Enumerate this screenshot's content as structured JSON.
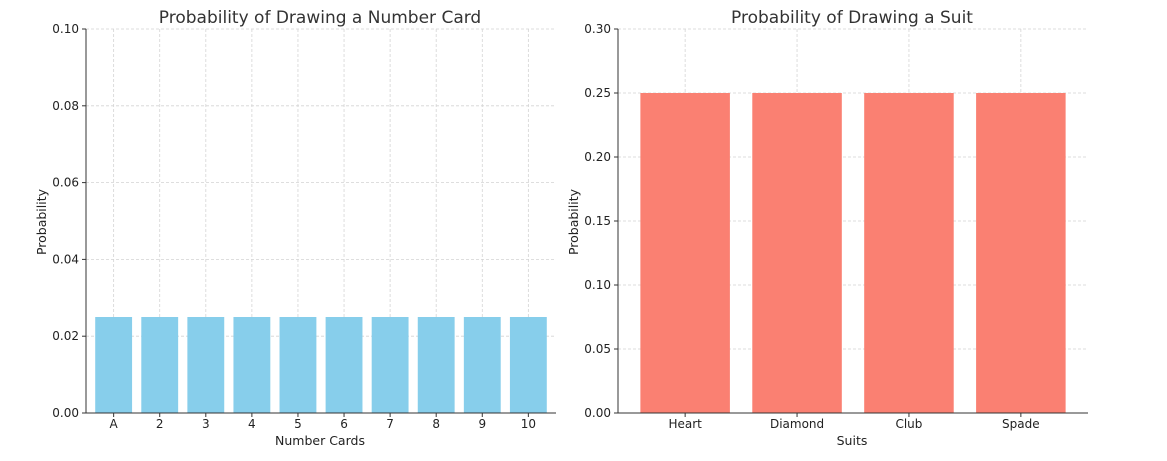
{
  "chart_data": [
    {
      "type": "bar",
      "title": "Probability of Drawing a Number Card",
      "xlabel": "Number Cards",
      "ylabel": "Probability",
      "categories": [
        "A",
        "2",
        "3",
        "4",
        "5",
        "6",
        "7",
        "8",
        "9",
        "10"
      ],
      "values": [
        0.025,
        0.025,
        0.025,
        0.025,
        0.025,
        0.025,
        0.025,
        0.025,
        0.025,
        0.025
      ],
      "ylim": [
        0,
        0.1
      ],
      "yticks": [
        "0.00",
        "0.02",
        "0.04",
        "0.06",
        "0.08",
        "0.10"
      ],
      "ytick_values": [
        0,
        0.02,
        0.04,
        0.06,
        0.08,
        0.1
      ],
      "color": "#87ceeb",
      "grid": true
    },
    {
      "type": "bar",
      "title": "Probability of Drawing a Suit",
      "xlabel": "Suits",
      "ylabel": "Probability",
      "categories": [
        "Heart",
        "Diamond",
        "Club",
        "Spade"
      ],
      "values": [
        0.25,
        0.25,
        0.25,
        0.25
      ],
      "ylim": [
        0,
        0.3
      ],
      "yticks": [
        "0.00",
        "0.05",
        "0.10",
        "0.15",
        "0.20",
        "0.25",
        "0.30"
      ],
      "ytick_values": [
        0,
        0.05,
        0.1,
        0.15,
        0.2,
        0.25,
        0.3
      ],
      "color": "#fa8072",
      "grid": true
    }
  ]
}
